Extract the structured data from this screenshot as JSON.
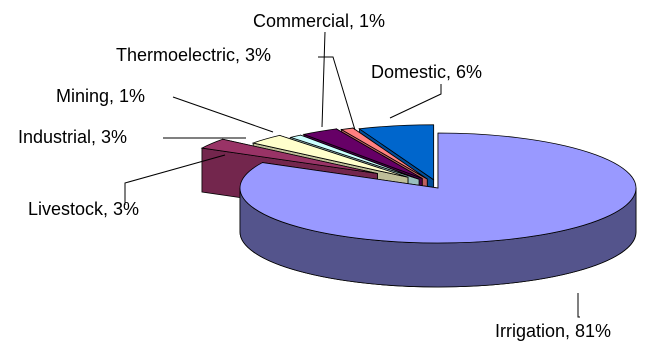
{
  "chart_data": {
    "type": "pie",
    "title": "",
    "style": "3d-exploded",
    "slices": [
      {
        "label": "Irrigation, 81%",
        "category": "Irrigation",
        "value": 81,
        "color": "#9999ff"
      },
      {
        "label": "Livestock, 3%",
        "category": "Livestock",
        "value": 3,
        "color": "#993366"
      },
      {
        "label": "Industrial, 3%",
        "category": "Industrial",
        "value": 3,
        "color": "#ffffcc"
      },
      {
        "label": "Mining, 1%",
        "category": "Mining",
        "value": 1,
        "color": "#ccffff"
      },
      {
        "label": "Thermoelectric, 3%",
        "category": "Thermoelectric",
        "value": 3,
        "color": "#660066"
      },
      {
        "label": "Commercial, 1%",
        "category": "Commercial",
        "value": 1,
        "color": "#ff8080"
      },
      {
        "label": "Domestic, 6%",
        "category": "Domestic",
        "value": 6,
        "color": "#0066cc"
      }
    ]
  }
}
